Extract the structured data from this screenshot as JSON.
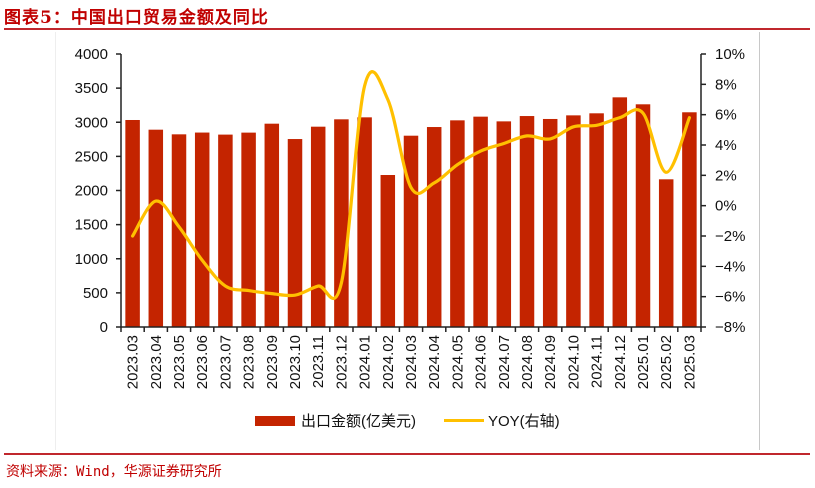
{
  "title": "图表5：中国出口贸易金额及同比",
  "source": "资料来源：Wind，华源证券研究所",
  "colors": {
    "bar": "#c42400",
    "line": "#ffc000",
    "accent": "#c0272d"
  },
  "legend": {
    "bar_label": "出口金额(亿美元)",
    "line_label": "YOY(右轴)"
  },
  "chart_data": {
    "type": "bar+line",
    "title": "中国出口贸易金额及同比",
    "categories": [
      "2023.03",
      "2023.04",
      "2023.05",
      "2023.06",
      "2023.07",
      "2023.08",
      "2023.09",
      "2023.10",
      "2023.11",
      "2023.12",
      "2024.01",
      "2024.02",
      "2024.03",
      "2024.04",
      "2024.05",
      "2024.06",
      "2024.07",
      "2024.08",
      "2024.09",
      "2024.10",
      "2024.11",
      "2024.12",
      "2025.01",
      "2025.02",
      "2025.03"
    ],
    "series": [
      {
        "name": "出口金额(亿美元)",
        "type": "bar",
        "axis": "left",
        "values": [
          3033,
          2891,
          2823,
          2849,
          2819,
          2848,
          2979,
          2754,
          2935,
          3043,
          3072,
          2227,
          2803,
          2930,
          3028,
          3082,
          3013,
          3091,
          3048,
          3101,
          3131,
          3365,
          3263,
          2164,
          3146
        ]
      },
      {
        "name": "YOY(右轴)",
        "type": "line",
        "axis": "right",
        "values": [
          -2.0,
          0.3,
          -1.4,
          -3.6,
          -5.3,
          -5.6,
          -5.8,
          -5.9,
          -5.3,
          -5.1,
          7.9,
          7.0,
          1.2,
          1.5,
          2.7,
          3.6,
          4.1,
          4.6,
          4.4,
          5.2,
          5.3,
          5.8,
          6.1,
          2.2,
          5.8
        ]
      }
    ],
    "left_axis": {
      "ylim": [
        0,
        4000
      ],
      "ticks": [
        "0",
        "500",
        "1000",
        "1500",
        "2000",
        "2500",
        "3000",
        "3500",
        "4000"
      ]
    },
    "right_axis": {
      "ylim": [
        -8,
        10
      ],
      "ticks": [
        "−8%",
        "−6%",
        "−4%",
        "−2%",
        "0%",
        "2%",
        "4%",
        "6%",
        "8%",
        "10%"
      ]
    },
    "xlabel": "",
    "ylabel": "",
    "grid": false,
    "legend_position": "bottom"
  }
}
